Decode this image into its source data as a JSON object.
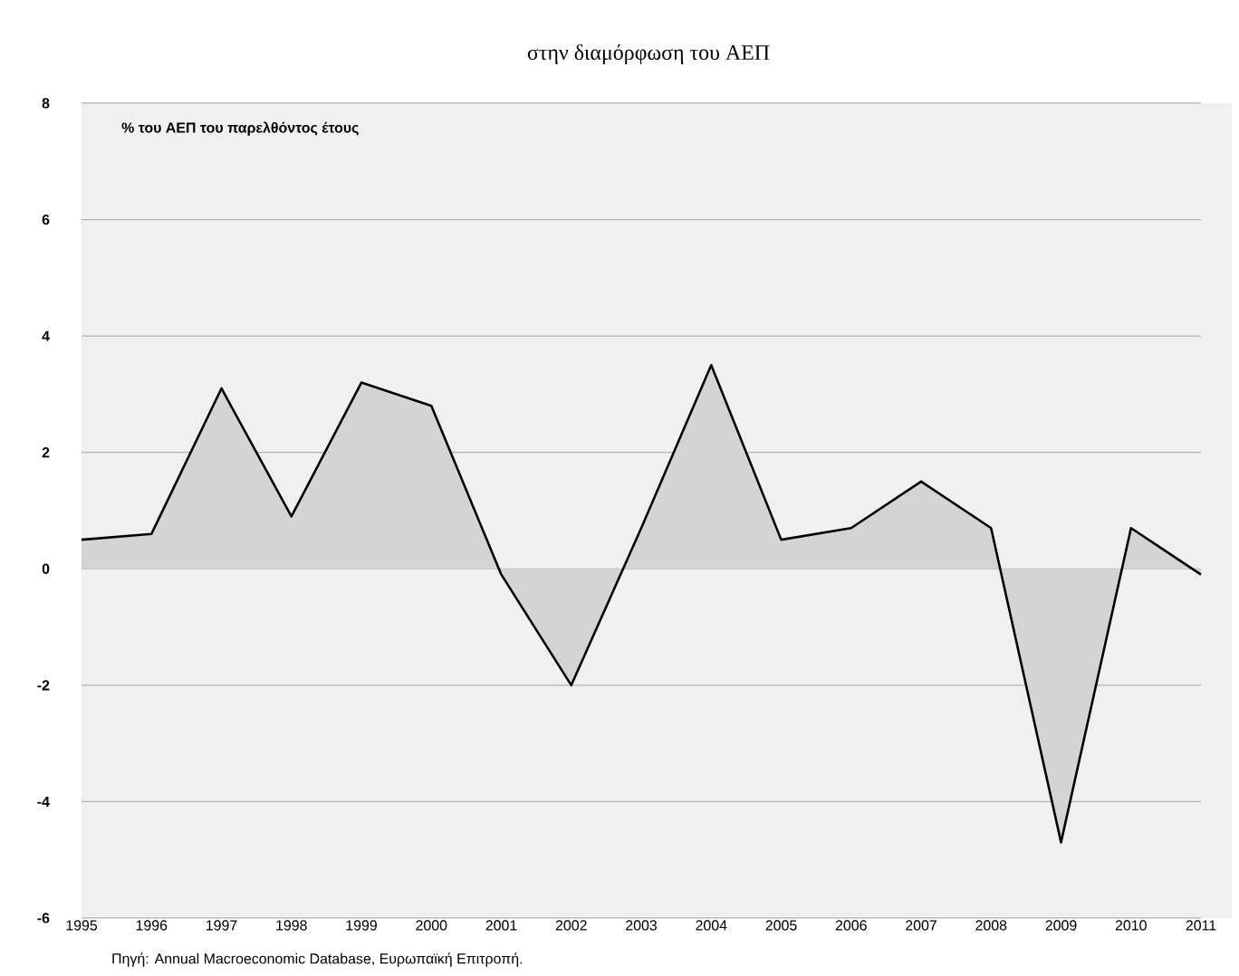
{
  "chart_data": {
    "type": "area",
    "title": "στην διαμόρφωση του ΑΕΠ",
    "ylabel": "% του ΑΕΠ του παρελθόντος έτους",
    "categories": [
      "1995",
      "1996",
      "1997",
      "1998",
      "1999",
      "2000",
      "2001",
      "2002",
      "2003",
      "2004",
      "2005",
      "2006",
      "2007",
      "2008",
      "2009",
      "2010",
      "2011"
    ],
    "series": [
      {
        "color": "#d4d4d4",
        "values": [
          0.5,
          0.6,
          3.1,
          0.9,
          3.2,
          2.8,
          -0.1,
          -2.0,
          0.7,
          3.5,
          0.5,
          0.7,
          1.5,
          0.7,
          -4.7,
          0.7,
          -0.1
        ]
      }
    ],
    "ylim": [
      -6,
      8
    ],
    "yticks": [
      -6,
      -4,
      -2,
      0,
      2,
      4,
      6,
      8
    ],
    "grid": "y",
    "annotations": [
      "Πηγή: Annual Macroeconomic Database, Ευρωπαϊκή Επιτροπή."
    ]
  }
}
